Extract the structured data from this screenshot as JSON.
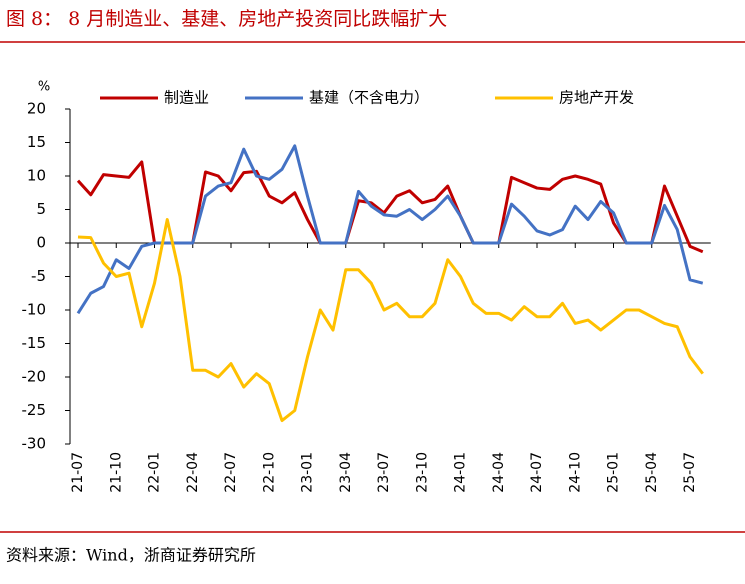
{
  "chart_data": {
    "type": "line",
    "title": "图 8：   8 月制造业、基建、房地产投资同比跌幅扩大",
    "source": "资料来源：Wind，浙商证券研究所",
    "y_label": "%",
    "categories": [
      "21-07",
      null,
      null,
      "21-10",
      null,
      null,
      "22-01",
      null,
      null,
      "22-04",
      null,
      null,
      "22-07",
      null,
      null,
      "22-10",
      null,
      null,
      "23-01",
      null,
      null,
      "23-04",
      null,
      null,
      "23-07",
      null,
      null,
      "23-10",
      null,
      null,
      "24-01",
      null,
      null,
      "24-04",
      null,
      null,
      "24-07",
      null,
      null,
      "24-10",
      null,
      null,
      "25-01",
      null,
      null,
      "25-04",
      null,
      null,
      "25-07",
      null
    ],
    "series": [
      {
        "name": "制造业",
        "color": "#c00000",
        "values": [
          9.3,
          7.2,
          10.2,
          10.0,
          9.8,
          12.1,
          0,
          0,
          0,
          0,
          10.6,
          10.0,
          7.8,
          10.5,
          10.7,
          7.0,
          6.0,
          7.5,
          3.5,
          0,
          0,
          0,
          6.3,
          6.0,
          4.5,
          7.0,
          7.8,
          6.0,
          6.5,
          8.5,
          4.0,
          0,
          0,
          0,
          9.8,
          9.0,
          8.2,
          8.0,
          9.5,
          10.0,
          9.5,
          8.8,
          3.0,
          0,
          0,
          0,
          8.5,
          4.0,
          -0.5,
          -1.3
        ]
      },
      {
        "name": "基建（不含电力）",
        "color": "#4472c4",
        "values": [
          -10.5,
          -7.5,
          -6.5,
          -2.5,
          -3.8,
          -0.5,
          0,
          0,
          0,
          0,
          7.0,
          8.5,
          9.0,
          14.0,
          10.0,
          9.5,
          11.0,
          14.5,
          7.0,
          0,
          0,
          0,
          7.7,
          5.5,
          4.2,
          4.0,
          5.0,
          3.5,
          5.0,
          7.0,
          4.0,
          0,
          0,
          0,
          5.8,
          4.0,
          1.8,
          1.2,
          2.0,
          5.5,
          3.5,
          6.2,
          4.5,
          0,
          0,
          0,
          5.6,
          2.0,
          -5.5,
          -6.0
        ]
      },
      {
        "name": "房地产开发",
        "color": "#ffc000",
        "values": [
          0.9,
          0.8,
          -3.0,
          -5.0,
          -4.5,
          -12.5,
          -6,
          3.5,
          -5,
          -19,
          -19,
          -20,
          -18,
          -21.5,
          -19.5,
          -21,
          -26.5,
          -25,
          -17,
          -10,
          -13,
          -4,
          -4,
          -6,
          -10,
          -9,
          -11,
          -11,
          -9,
          -2.5,
          -5,
          -9,
          -10.5,
          -10.5,
          -11.5,
          -9.5,
          -11,
          -11,
          -9,
          -12,
          -11.5,
          -13,
          -11.5,
          -10,
          -10,
          -11,
          -12,
          -12.5,
          -17,
          -19.5
        ]
      }
    ],
    "ylim": [
      -30,
      20
    ],
    "yticks": [
      -30,
      -25,
      -20,
      -15,
      -10,
      -5,
      0,
      5,
      10,
      15,
      20
    ]
  }
}
